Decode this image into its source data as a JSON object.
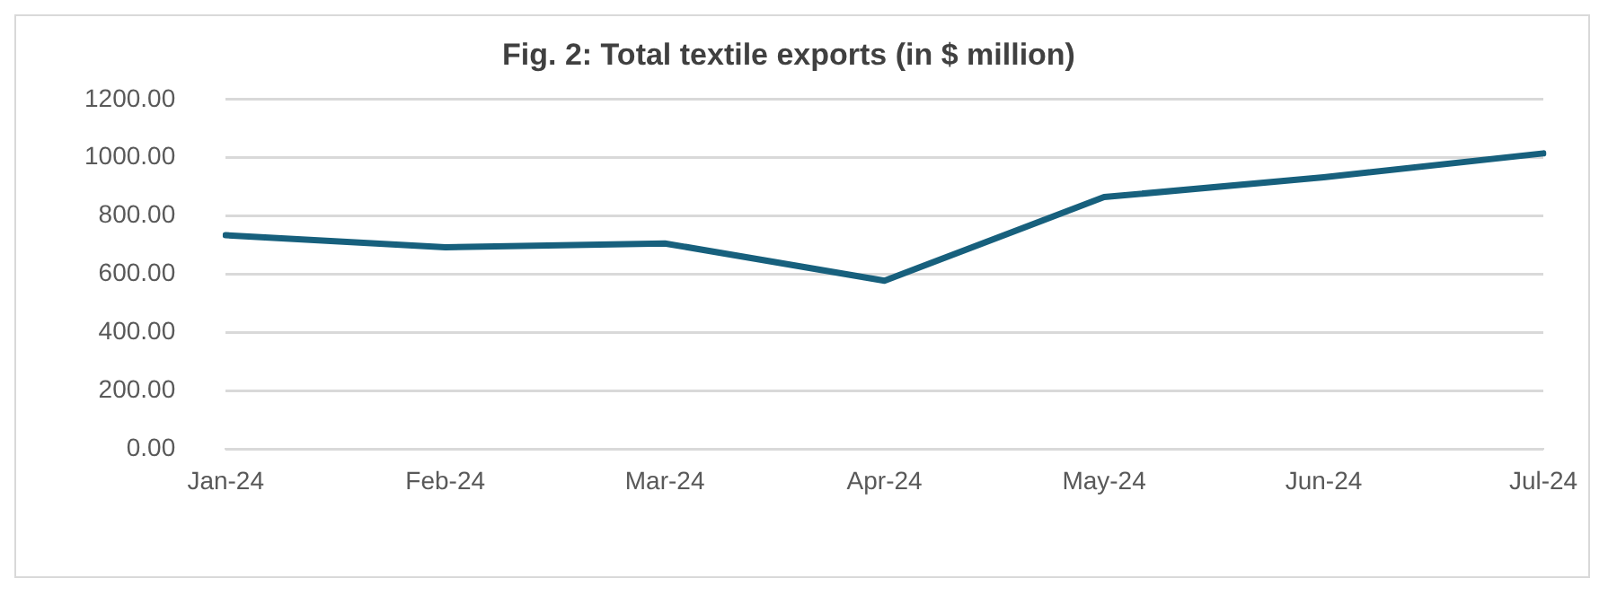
{
  "chart_data": {
    "type": "line",
    "title": "Fig. 2: Total textile exports (in $ million)",
    "categories": [
      "Jan-24",
      "Feb-24",
      "Mar-24",
      "Apr-24",
      "May-24",
      "Jun-24",
      "Jul-24"
    ],
    "series": [
      {
        "color": "#17607d",
        "values": [
          734,
          693,
          706,
          578,
          865,
          933,
          1015
        ]
      }
    ],
    "ylim": [
      0,
      1200
    ],
    "yticks": [
      {
        "value": 0,
        "label": "0.00"
      },
      {
        "value": 200,
        "label": "200.00"
      },
      {
        "value": 400,
        "label": "400.00"
      },
      {
        "value": 600,
        "label": "600.00"
      },
      {
        "value": 800,
        "label": "800.00"
      },
      {
        "value": 1000,
        "label": "1000.00"
      },
      {
        "value": 1200,
        "label": "1200.00"
      }
    ],
    "grid": "y",
    "legend": false,
    "marker": "none",
    "line_style": "solid"
  }
}
